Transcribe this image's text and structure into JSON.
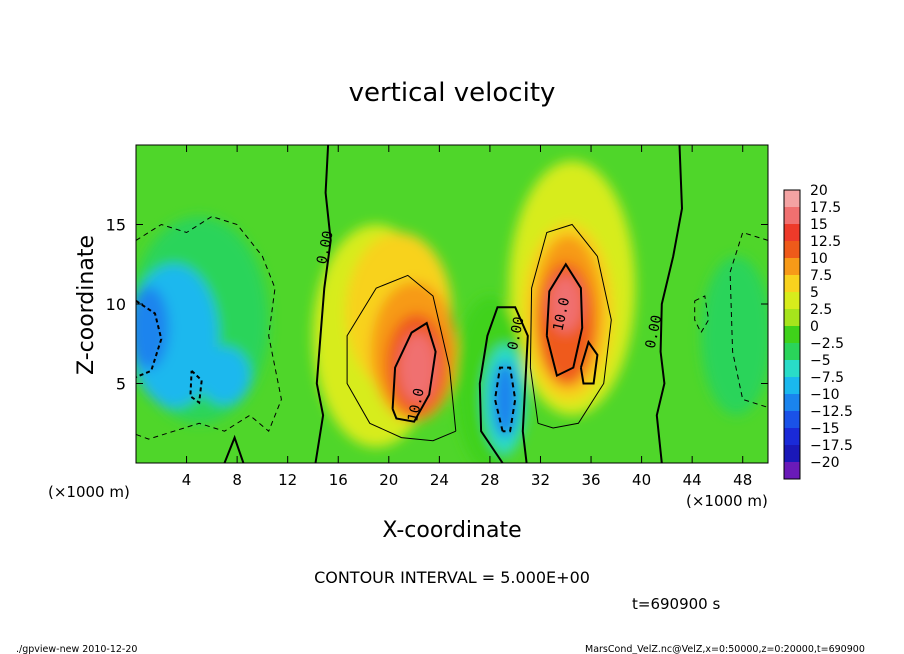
{
  "chart_data": {
    "type": "heatmap",
    "title": "vertical velocity",
    "xlabel": "X-coordinate",
    "ylabel": "Z-coordinate",
    "x_unit_label": "(×1000 m)",
    "z_unit_label": "(×1000 m)",
    "xlim": [
      0,
      50
    ],
    "ylim": [
      0,
      20
    ],
    "x_ticks": [
      4,
      8,
      12,
      16,
      20,
      24,
      28,
      32,
      36,
      40,
      44,
      48
    ],
    "y_ticks": [
      5,
      10,
      15
    ],
    "contour_interval_text": "CONTOUR INTERVAL = 5.000E+00",
    "contour_labels": [
      {
        "text": "0.00",
        "x": 15.3,
        "y": 13.5
      },
      {
        "text": "10.0",
        "x": 22.5,
        "y": 3.6
      },
      {
        "text": "0.00",
        "x": 30.4,
        "y": 8.1
      },
      {
        "text": "10.0",
        "x": 34.0,
        "y": 9.3
      },
      {
        "text": "0.00",
        "x": 41.3,
        "y": 8.2
      }
    ],
    "colorbar": {
      "levels": [
        20,
        17.5,
        15,
        12.5,
        10,
        7.5,
        5,
        2.5,
        0,
        -2.5,
        -5,
        -7.5,
        -10,
        -12.5,
        -15,
        -17.5,
        -20
      ],
      "labels": [
        "20",
        "17.5",
        "15",
        "12.5",
        "10",
        "7.5",
        "5",
        "2.5",
        "0",
        "−2.5",
        "−5",
        "−7.5",
        "−10",
        "−12.5",
        "−15",
        "−17.5",
        "−20"
      ],
      "colors": [
        "#f4a3a3",
        "#f07070",
        "#ee3a2a",
        "#ef5a1a",
        "#f79a18",
        "#f8d21e",
        "#d7ec1c",
        "#a6e41c",
        "#3fd21a",
        "#2ad45a",
        "#29dcc8",
        "#1ab8ee",
        "#1a84ee",
        "#1a52e8",
        "#1a2ad8",
        "#1a18b8",
        "#6a1ab8"
      ]
    },
    "features": [
      {
        "kind": "updraft",
        "x": 22,
        "z": 6.2,
        "peak": 16
      },
      {
        "kind": "updraft",
        "x": 34,
        "z": 9.0,
        "peak": 14
      },
      {
        "kind": "downdraft",
        "x": 29,
        "z": 4.0,
        "peak": -12
      },
      {
        "kind": "downdraft",
        "x": 1,
        "z": 8.5,
        "peak": -11
      }
    ]
  },
  "time_label": "t=690900  s",
  "footer": {
    "left": "./gpview-new   2010-12-20",
    "right": "MarsCond_VelZ.nc@VelZ,x=0:50000,z=0:20000,t=690900"
  }
}
